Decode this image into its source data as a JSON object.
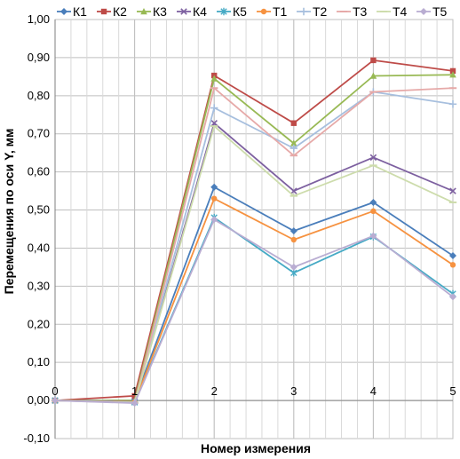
{
  "chart_data": {
    "type": "line",
    "xlabel": "Номер измерения",
    "ylabel": "Перемещения по оси Y, мм",
    "x": [
      0,
      1,
      2,
      3,
      4,
      5
    ],
    "xlim": [
      0,
      5
    ],
    "ylim": [
      -0.1,
      1.0
    ],
    "ytick_step": 0.1,
    "grid": true,
    "legend_position": "top",
    "series": [
      {
        "name": "К1",
        "color": "#4a7ebb",
        "marker": "diamond",
        "values": [
          0.0,
          0.0,
          0.56,
          0.445,
          0.52,
          0.38
        ]
      },
      {
        "name": "К2",
        "color": "#be4b48",
        "marker": "square",
        "values": [
          0.0,
          0.012,
          0.853,
          0.728,
          0.893,
          0.865
        ]
      },
      {
        "name": "К3",
        "color": "#98b954",
        "marker": "triangle",
        "values": [
          0.0,
          0.0,
          0.845,
          0.675,
          0.852,
          0.855
        ]
      },
      {
        "name": "К4",
        "color": "#7d60a0",
        "marker": "x",
        "values": [
          0.0,
          -0.003,
          0.728,
          0.55,
          0.638,
          0.55
        ]
      },
      {
        "name": "К5",
        "color": "#46aac5",
        "marker": "star",
        "values": [
          0.0,
          -0.005,
          0.48,
          0.335,
          0.43,
          0.28
        ]
      },
      {
        "name": "Т1",
        "color": "#f69240",
        "marker": "circle",
        "values": [
          0.0,
          -0.004,
          0.53,
          0.422,
          0.497,
          0.356
        ]
      },
      {
        "name": "Т2",
        "color": "#a7bfde",
        "marker": "plus",
        "values": [
          0.0,
          -0.005,
          0.768,
          0.662,
          0.81,
          0.778
        ]
      },
      {
        "name": "Т3",
        "color": "#e6a9a8",
        "marker": "dash",
        "values": [
          0.0,
          -0.006,
          0.82,
          0.643,
          0.81,
          0.82
        ]
      },
      {
        "name": "Т4",
        "color": "#cddcac",
        "marker": "dash",
        "values": [
          0.0,
          -0.006,
          0.72,
          0.537,
          0.617,
          0.52
        ]
      },
      {
        "name": "Т5",
        "color": "#b9add2",
        "marker": "diamond",
        "values": [
          0.0,
          -0.007,
          0.475,
          0.35,
          0.432,
          0.272
        ]
      }
    ]
  }
}
